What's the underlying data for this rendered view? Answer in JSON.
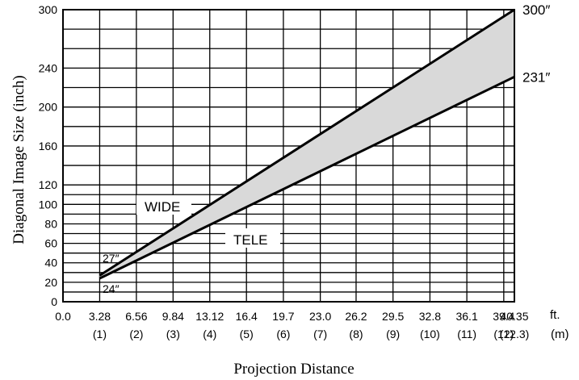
{
  "chart_data": {
    "type": "area",
    "xlabel": "Projection Distance",
    "ylabel": "Diagonal Image Size (inch)",
    "x_unit_ft": "ft.",
    "x_unit_m": "(m)",
    "xlim": [
      0,
      40.35
    ],
    "ylim": [
      0,
      300
    ],
    "x_ticks_ft": [
      "0.0",
      "3.28",
      "6.56",
      "9.84",
      "13.12",
      "16.4",
      "19.7",
      "23.0",
      "26.2",
      "29.5",
      "32.8",
      "36.1",
      "39.4",
      "40.35"
    ],
    "x_ticks_m": [
      "(1)",
      "(2)",
      "(3)",
      "(4)",
      "(5)",
      "(6)",
      "(7)",
      "(8)",
      "(9)",
      "(10)",
      "(11)",
      "(12)",
      "(12.3)"
    ],
    "y_ticks": [
      "0",
      "20",
      "40",
      "60",
      "80",
      "100",
      "120",
      "160",
      "200",
      "240",
      "300"
    ],
    "grid": true,
    "series": [
      {
        "name": "WIDE",
        "x": [
          3.28,
          40.35
        ],
        "y": [
          27,
          300
        ],
        "end_label": "300″",
        "start_label": "27″"
      },
      {
        "name": "TELE",
        "x": [
          3.28,
          40.35
        ],
        "y": [
          24,
          231
        ],
        "end_label": "231″",
        "start_label": "24″"
      }
    ],
    "fill_color": "#d9d9d9",
    "line_color": "#000000"
  }
}
